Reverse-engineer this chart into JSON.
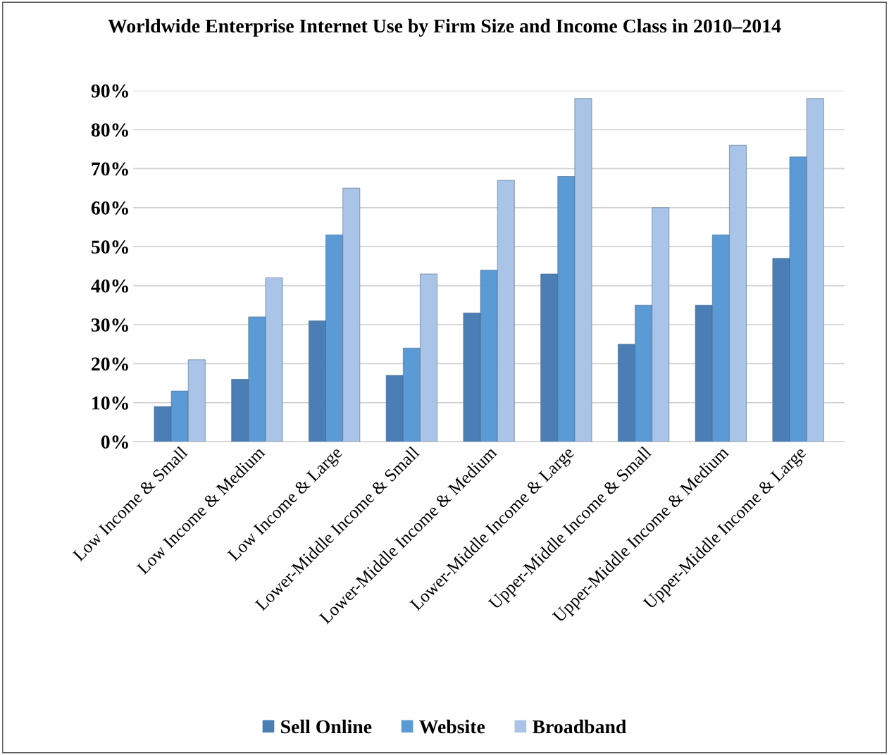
{
  "chart_data": {
    "type": "bar",
    "title": "Worldwide Enterprise Internet Use by Firm Size and Income Class in 2010–2014",
    "categories": [
      "Low Income & Small",
      "Low Income & Medium",
      "Low Income & Large",
      "Lower-Middle Income & Small",
      "Lower-Middle Income & Medium",
      "Lower-Middle Income & Large",
      "Upper-Middle Income & Small",
      "Upper-Middle Income & Medium",
      "Upper-Middle Income & Large"
    ],
    "series": [
      {
        "name": "Sell Online",
        "color": "#4a7eb4",
        "values": [
          9,
          16,
          31,
          17,
          33,
          43,
          25,
          35,
          47
        ]
      },
      {
        "name": "Website",
        "color": "#5b9bd5",
        "values": [
          13,
          32,
          53,
          24,
          44,
          68,
          35,
          53,
          73
        ]
      },
      {
        "name": "Broadband",
        "color": "#a9c4e6",
        "values": [
          21,
          42,
          65,
          43,
          67,
          88,
          60,
          76,
          88
        ]
      }
    ],
    "ylim": [
      0,
      90
    ],
    "yticks": [
      {
        "value": 0,
        "label": "0%"
      },
      {
        "value": 10,
        "label": "10%"
      },
      {
        "value": 20,
        "label": "20%"
      },
      {
        "value": 30,
        "label": "30%"
      },
      {
        "value": 40,
        "label": "40%"
      },
      {
        "value": 50,
        "label": "50%"
      },
      {
        "value": 60,
        "label": "60%"
      },
      {
        "value": 70,
        "label": "70%"
      },
      {
        "value": 80,
        "label": "80%"
      },
      {
        "value": 90,
        "label": "90%"
      }
    ],
    "grid": "y",
    "legend": "bottom"
  }
}
